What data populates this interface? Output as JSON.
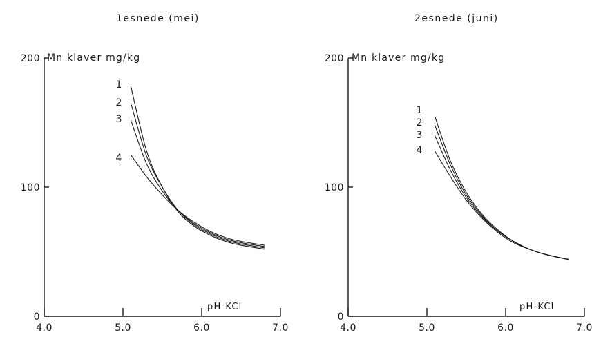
{
  "chart_data": [
    {
      "type": "line",
      "title": "1esnede (mei)",
      "ylabel": "Mn klaver mg/kg",
      "xlabel": "pH-KCl",
      "xlim": [
        4.0,
        7.0
      ],
      "ylim": [
        0,
        200
      ],
      "x_ticks": [
        "4.0",
        "5.0",
        "6.0",
        "7.0"
      ],
      "y_ticks": [
        "0",
        "100",
        "200"
      ],
      "grid": false,
      "series": [
        {
          "name": "1",
          "x": [
            5.1,
            5.3,
            5.5,
            5.7,
            5.9,
            6.1,
            6.3,
            6.5,
            6.8
          ],
          "y": [
            178,
            128,
            100,
            81,
            70,
            63,
            58,
            55,
            52
          ]
        },
        {
          "name": "2",
          "x": [
            5.1,
            5.3,
            5.5,
            5.7,
            5.9,
            6.1,
            6.3,
            6.5,
            6.8
          ],
          "y": [
            165,
            124,
            100,
            82,
            71,
            64,
            59,
            56,
            53
          ]
        },
        {
          "name": "3",
          "x": [
            5.1,
            5.3,
            5.5,
            5.7,
            5.9,
            6.1,
            6.3,
            6.5,
            6.8
          ],
          "y": [
            152,
            118,
            97,
            82,
            72,
            65,
            60,
            57,
            54
          ]
        },
        {
          "name": "4",
          "x": [
            5.1,
            5.3,
            5.5,
            5.7,
            5.9,
            6.1,
            6.3,
            6.5,
            6.8
          ],
          "y": [
            125,
            108,
            94,
            82,
            73,
            66,
            61,
            58,
            55
          ]
        }
      ]
    },
    {
      "type": "line",
      "title": "2esnede (juni)",
      "ylabel": "Mn klaver mg/kg",
      "xlabel": "pH-KCl",
      "xlim": [
        4.0,
        7.0
      ],
      "ylim": [
        0,
        200
      ],
      "x_ticks": [
        "4.0",
        "5.0",
        "6.0",
        "7.0"
      ],
      "y_ticks": [
        "0",
        "100",
        "200"
      ],
      "grid": false,
      "series": [
        {
          "name": "1",
          "x": [
            5.1,
            5.3,
            5.5,
            5.7,
            5.9,
            6.1,
            6.3,
            6.5,
            6.8
          ],
          "y": [
            155,
            120,
            96,
            79,
            67,
            58,
            52,
            48,
            44
          ]
        },
        {
          "name": "2",
          "x": [
            5.1,
            5.3,
            5.5,
            5.7,
            5.9,
            6.1,
            6.3,
            6.5,
            6.8
          ],
          "y": [
            148,
            117,
            94,
            78,
            66,
            58,
            52,
            48,
            44
          ]
        },
        {
          "name": "3",
          "x": [
            5.1,
            5.3,
            5.5,
            5.7,
            5.9,
            6.1,
            6.3,
            6.5,
            6.8
          ],
          "y": [
            140,
            113,
            92,
            77,
            66,
            58,
            52,
            48,
            44
          ]
        },
        {
          "name": "4",
          "x": [
            5.1,
            5.3,
            5.5,
            5.7,
            5.9,
            6.1,
            6.3,
            6.5,
            6.8
          ],
          "y": [
            128,
            108,
            90,
            76,
            65,
            57,
            52,
            48,
            44
          ]
        }
      ]
    }
  ]
}
